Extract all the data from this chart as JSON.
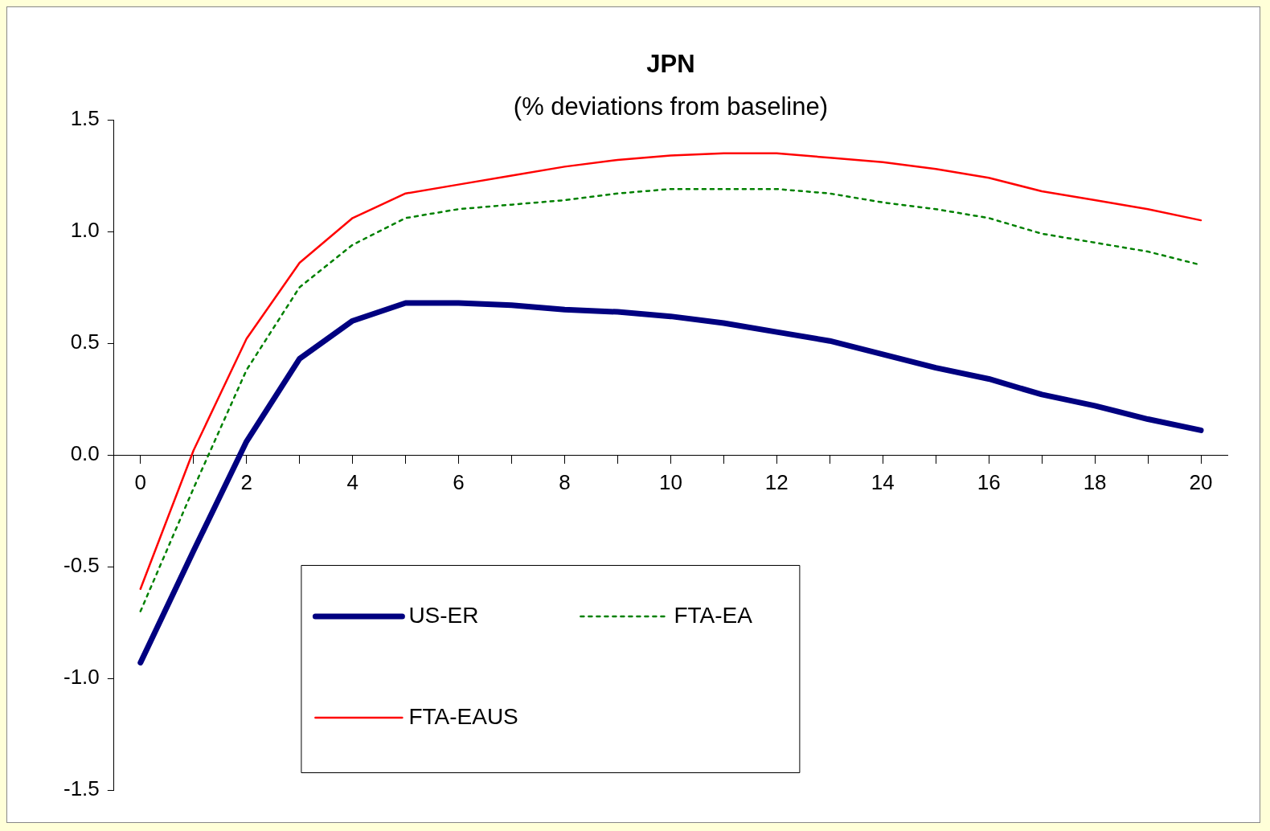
{
  "chart_data": {
    "type": "line",
    "title": "JPN",
    "subtitle": "(% deviations from baseline)",
    "x": [
      0,
      1,
      2,
      3,
      4,
      5,
      6,
      7,
      8,
      9,
      10,
      11,
      12,
      13,
      14,
      15,
      16,
      17,
      18,
      19,
      20
    ],
    "xlim": [
      -0.5,
      20.5
    ],
    "xticks": [
      0,
      {
        "value": 1,
        "label": null
      },
      2,
      {
        "value": 3,
        "label": null
      },
      4,
      {
        "value": 5,
        "label": null
      },
      6,
      {
        "value": 7,
        "label": null
      },
      8,
      {
        "value": 9,
        "label": null
      },
      10,
      {
        "value": 11,
        "label": null
      },
      12,
      {
        "value": 13,
        "label": null
      },
      14,
      {
        "value": 15,
        "label": null
      },
      16,
      {
        "value": 17,
        "label": null
      },
      18,
      {
        "value": 19,
        "label": null
      },
      20
    ],
    "ylim": [
      -1.5,
      1.5
    ],
    "yticks": [
      {
        "value": -1.5,
        "label": "-1.5"
      },
      {
        "value": -1,
        "label": "-1.0"
      },
      {
        "value": -0.5,
        "label": "-0.5"
      },
      {
        "value": 0,
        "label": "0.0"
      },
      {
        "value": 0.5,
        "label": "0.5"
      },
      {
        "value": 1,
        "label": "1.0"
      },
      {
        "value": 1.5,
        "label": "1.5"
      }
    ],
    "grid": false,
    "legend": "bottom",
    "marker": "none",
    "series": [
      {
        "name": "US-ER",
        "color": "#000080",
        "line_style": "solid",
        "values": [
          -0.93,
          -0.43,
          0.06,
          0.43,
          0.6,
          0.68,
          0.68,
          0.67,
          0.65,
          0.64,
          0.62,
          0.59,
          0.55,
          0.51,
          0.45,
          0.39,
          0.34,
          0.27,
          0.22,
          0.16,
          0.11
        ]
      },
      {
        "name": "FTA-EA",
        "color": "#008000",
        "line_style": "dotted",
        "values": [
          -0.7,
          -0.15,
          0.38,
          0.75,
          0.94,
          1.06,
          1.1,
          1.12,
          1.14,
          1.17,
          1.19,
          1.19,
          1.19,
          1.17,
          1.13,
          1.1,
          1.06,
          0.99,
          0.95,
          0.91,
          0.85
        ]
      },
      {
        "name": "FTA-EAUS",
        "color": "#ff0000",
        "line_style": "solid",
        "values": [
          -0.6,
          0.02,
          0.52,
          0.86,
          1.06,
          1.17,
          1.21,
          1.25,
          1.29,
          1.32,
          1.34,
          1.35,
          1.35,
          1.33,
          1.31,
          1.28,
          1.24,
          1.18,
          1.14,
          1.1,
          1.05
        ]
      }
    ]
  }
}
